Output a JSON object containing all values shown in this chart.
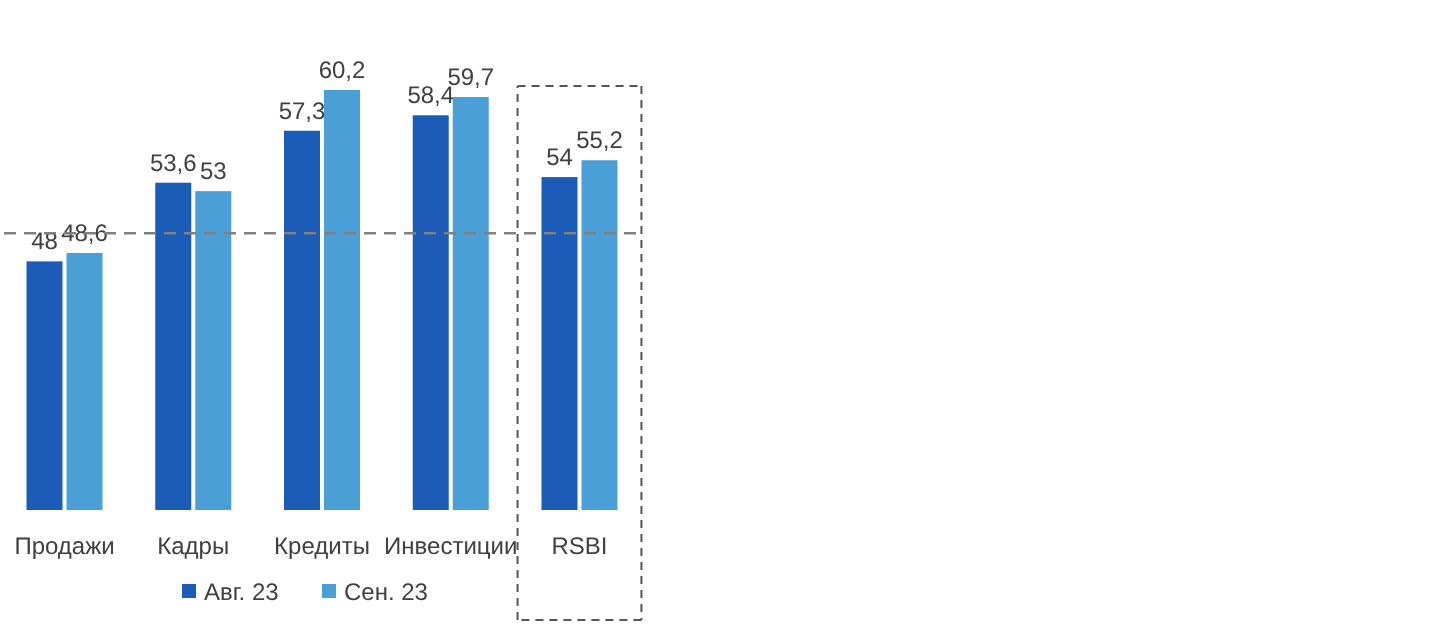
{
  "chart_data": {
    "type": "bar",
    "categories": [
      "Продажи",
      "Кадры",
      "Кредиты",
      "Инвестиции",
      "RSBI"
    ],
    "series": [
      {
        "name": "Авг. 23",
        "color": "#1a5cb8",
        "values": [
          48,
          53.6,
          57.3,
          58.4,
          54
        ],
        "value_labels": [
          "48",
          "53,6",
          "57,3",
          "58,4",
          "54"
        ]
      },
      {
        "name": "Сен. 23",
        "color": "#4aa0d6",
        "values": [
          48.6,
          53,
          60.2,
          59.7,
          55.2
        ],
        "value_labels": [
          "48,6",
          "53",
          "60,2",
          "59,7",
          "55,2"
        ]
      }
    ],
    "ylim": [
      30.3,
      60.2
    ],
    "legend": "bottom",
    "tick_labels": "x",
    "ref_lines": [
      {
        "axis": "y",
        "value": 50,
        "color": "#808080",
        "line_style": "dashed"
      }
    ]
  }
}
